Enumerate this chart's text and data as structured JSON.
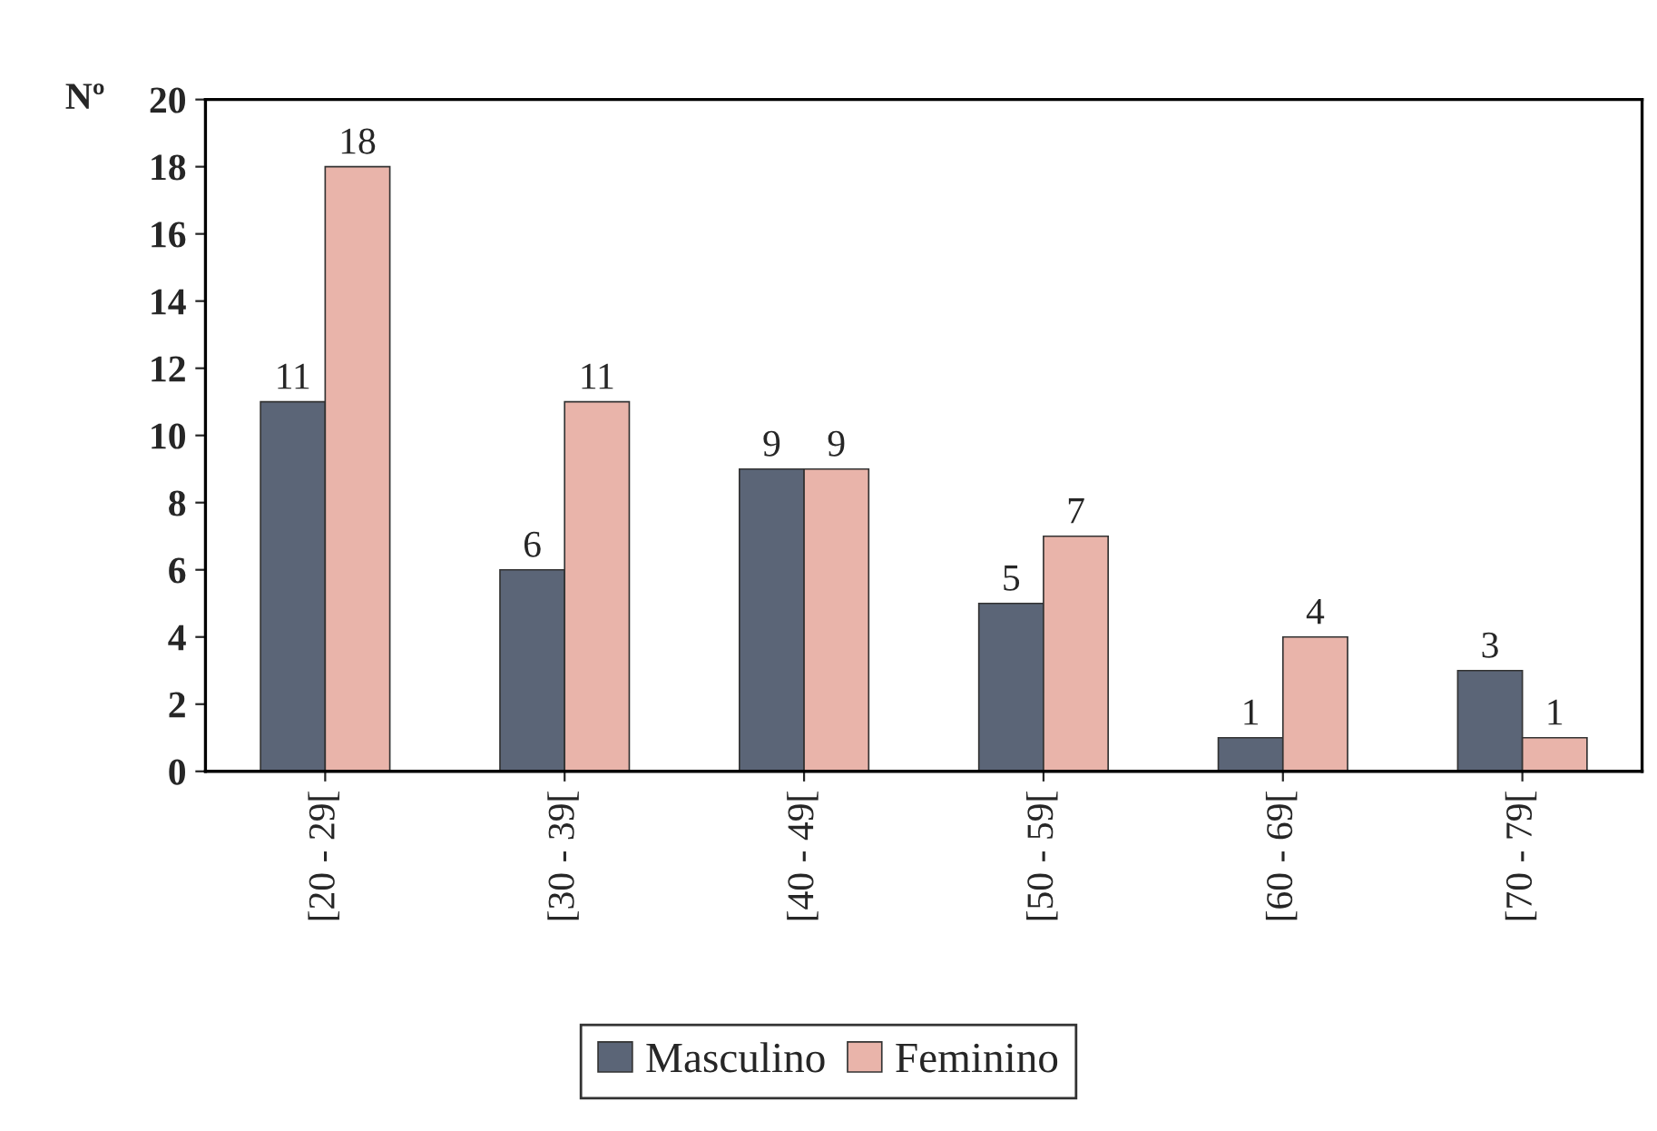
{
  "chart_data": {
    "type": "bar",
    "ylabel": "Nº",
    "categories": [
      "[20 - 29[",
      "[30 - 39[",
      "[40 - 49[",
      "[50 - 59[",
      "[60 - 69[",
      "[70 - 79["
    ],
    "series": [
      {
        "name": "Masculino",
        "color": "#5b6577",
        "values": [
          11,
          6,
          9,
          5,
          1,
          3
        ]
      },
      {
        "name": "Feminino",
        "color": "#e9b4aa",
        "values": [
          18,
          11,
          9,
          7,
          4,
          1
        ]
      }
    ],
    "ylim": [
      0,
      20
    ],
    "yticks": [
      0,
      2,
      4,
      6,
      8,
      10,
      12,
      14,
      16,
      18,
      20
    ],
    "data_labels": true,
    "legend": "bottom",
    "grid": false
  }
}
